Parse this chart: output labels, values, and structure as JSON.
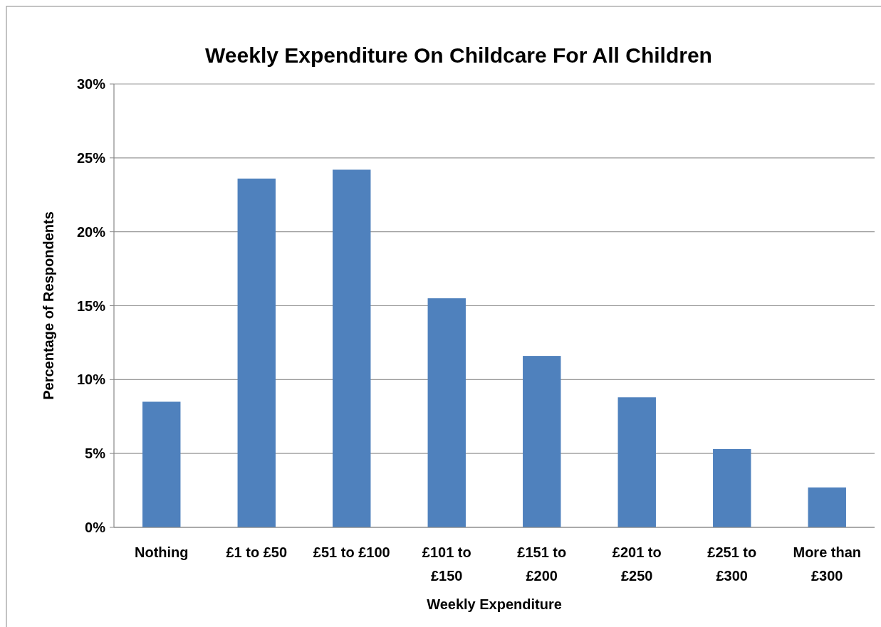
{
  "chart_data": {
    "type": "bar",
    "title": "Weekly Expenditure On Childcare For All Children",
    "xlabel": "Weekly Expenditure",
    "ylabel": "Percentage of Respondents",
    "categories": [
      "Nothing",
      "£1 to £50",
      "£51 to £100",
      "£101 to £150",
      "£151 to £200",
      "£201 to £250",
      "£251 to £300",
      "More than £300"
    ],
    "values": [
      8.5,
      23.6,
      24.2,
      15.5,
      11.6,
      8.8,
      5.3,
      2.7
    ],
    "color": "#4f81bd",
    "ylim": [
      0,
      30
    ],
    "yticks": [
      {
        "value": 0,
        "label": "0%"
      },
      {
        "value": 5,
        "label": "5%"
      },
      {
        "value": 10,
        "label": "10%"
      },
      {
        "value": 15,
        "label": "15%"
      },
      {
        "value": 20,
        "label": "20%"
      },
      {
        "value": 25,
        "label": "25%"
      },
      {
        "value": 30,
        "label": "30%"
      }
    ],
    "grid": "y"
  }
}
